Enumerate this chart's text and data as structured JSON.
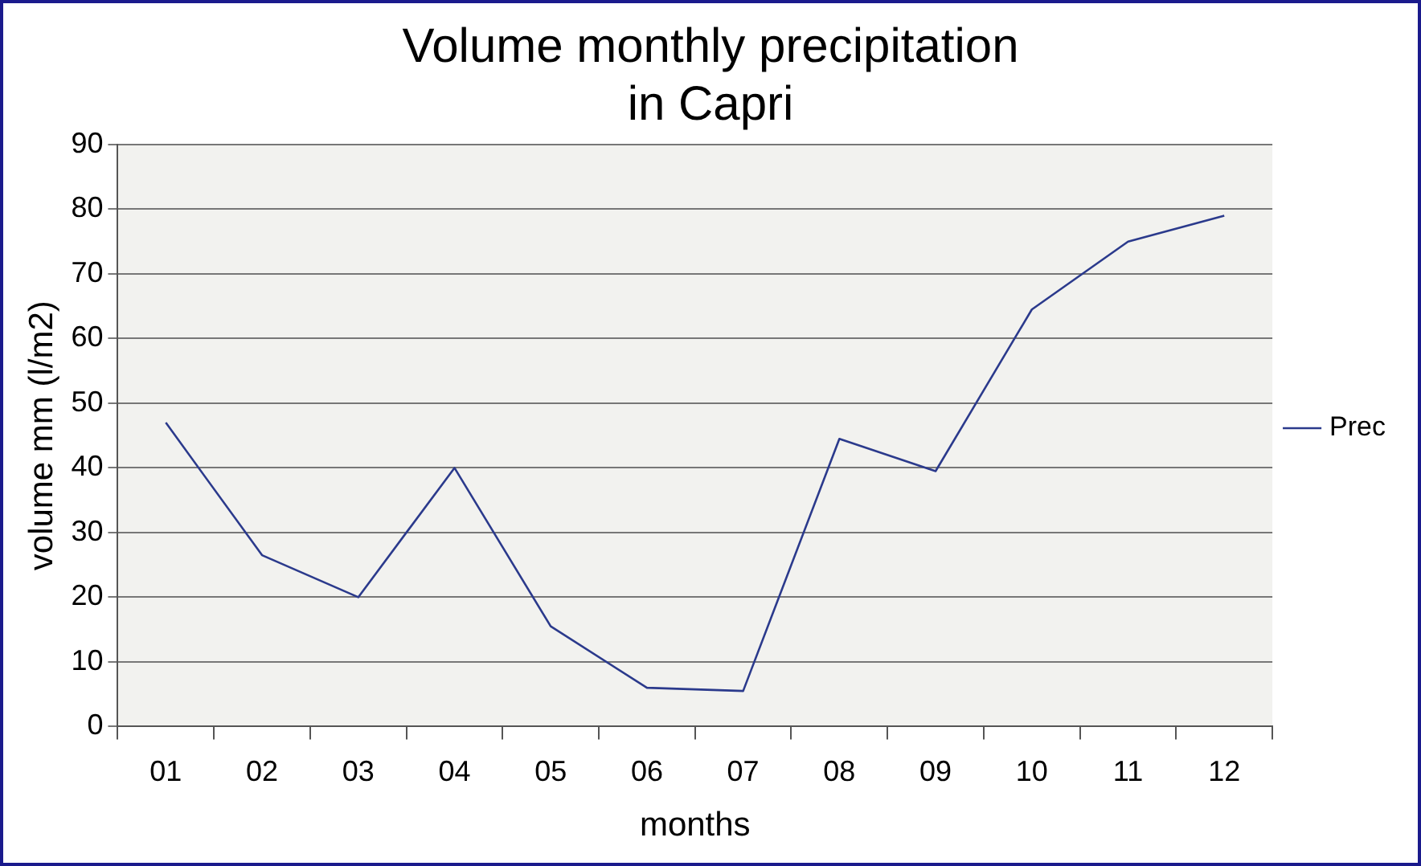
{
  "chart_data": {
    "type": "line",
    "title": [
      "Volume monthly precipitation",
      "in Capri"
    ],
    "xlabel": "months",
    "ylabel": "volume mm (l/m2)",
    "categories": [
      "01",
      "02",
      "03",
      "04",
      "05",
      "06",
      "07",
      "08",
      "09",
      "10",
      "11",
      "12"
    ],
    "series": [
      {
        "name": "Prec",
        "color": "#2b3a8c",
        "values": [
          47,
          26.5,
          20,
          40,
          15.5,
          6,
          5.5,
          44.5,
          39.5,
          64.5,
          75,
          79
        ]
      }
    ],
    "ylim": [
      0,
      90
    ],
    "yticks": [
      0,
      10,
      20,
      30,
      40,
      50,
      60,
      70,
      80,
      90
    ],
    "grid": "y",
    "legend": "right",
    "marker": "none",
    "line_style": "solid"
  }
}
